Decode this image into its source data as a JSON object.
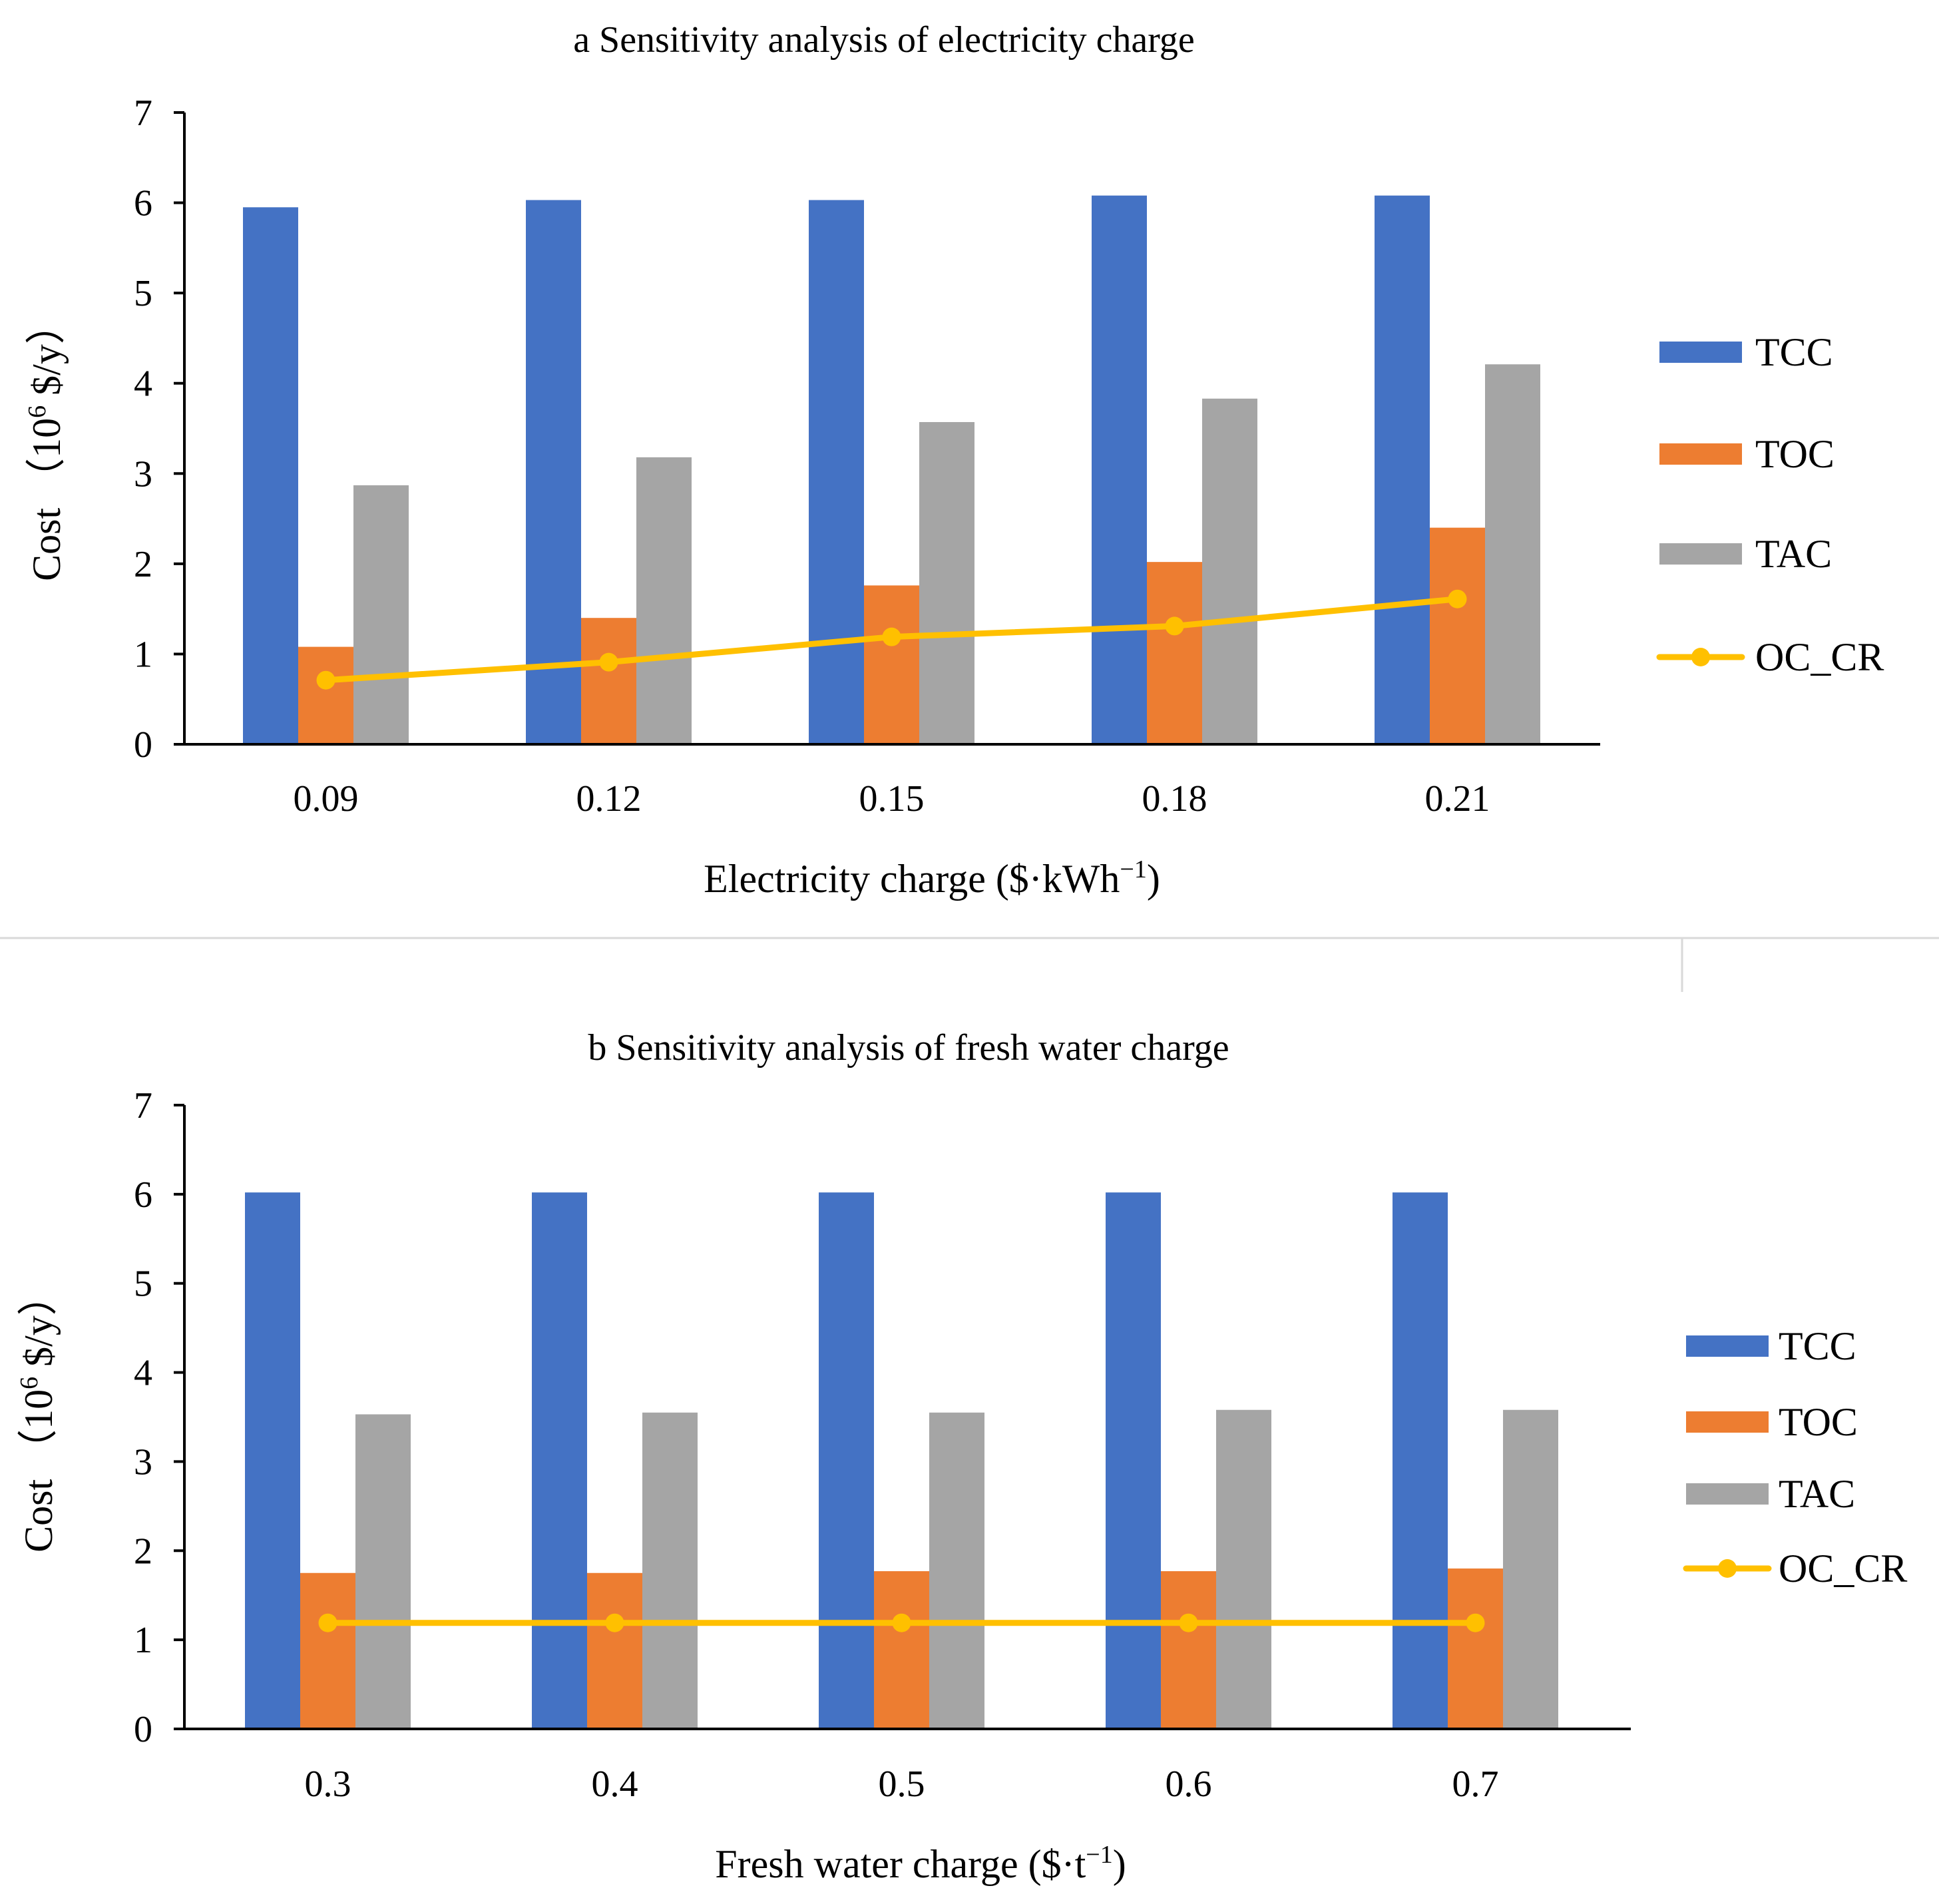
{
  "colors": {
    "TCC": "#4472C4",
    "TOC": "#ED7D31",
    "TAC": "#A5A5A5",
    "OC_CR": "#FFC000",
    "axis": "#000000",
    "divider": "#D9D9D9"
  },
  "chart_data": [
    {
      "type": "bar",
      "title": "a Sensitivity analysis of electricity charge",
      "xlabel": "Electricity charge ($·kWh",
      "xlabel_sup": "−1",
      "xlabel_tail": ")",
      "ylabel_prefix": "Cost （10",
      "ylabel_sup": "6",
      "ylabel_suffix": " $/y）",
      "categories": [
        "0.09",
        "0.12",
        "0.15",
        "0.18",
        "0.21"
      ],
      "ylim": [
        0,
        7
      ],
      "yticks": [
        "0",
        "1",
        "2",
        "3",
        "4",
        "5",
        "6",
        "7"
      ],
      "series": [
        {
          "name": "TCC",
          "kind": "bar",
          "values": [
            5.95,
            6.03,
            6.03,
            6.08,
            6.08
          ]
        },
        {
          "name": "TOC",
          "kind": "bar",
          "values": [
            1.08,
            1.4,
            1.76,
            2.02,
            2.4
          ]
        },
        {
          "name": "TAC",
          "kind": "bar",
          "values": [
            2.87,
            3.18,
            3.57,
            3.83,
            4.21
          ]
        },
        {
          "name": "OC_CR",
          "kind": "line",
          "values": [
            0.71,
            0.91,
            1.19,
            1.31,
            1.61
          ]
        }
      ],
      "legend": [
        "TCC",
        "TOC",
        "TAC",
        "OC_CR"
      ]
    },
    {
      "type": "bar",
      "title": "b Sensitivity analysis of fresh water charge",
      "xlabel": "Fresh water charge ($·t",
      "xlabel_sup": "−1",
      "xlabel_tail": ")",
      "ylabel_prefix": "Cost （10",
      "ylabel_sup": "6",
      "ylabel_suffix": " $/y）",
      "categories": [
        "0.3",
        "0.4",
        "0.5",
        "0.6",
        "0.7"
      ],
      "ylim": [
        0,
        7
      ],
      "yticks": [
        "0",
        "1",
        "2",
        "3",
        "4",
        "5",
        "6",
        "7"
      ],
      "series": [
        {
          "name": "TCC",
          "kind": "bar",
          "values": [
            6.02,
            6.02,
            6.02,
            6.02,
            6.02
          ]
        },
        {
          "name": "TOC",
          "kind": "bar",
          "values": [
            1.75,
            1.75,
            1.77,
            1.77,
            1.8
          ]
        },
        {
          "name": "TAC",
          "kind": "bar",
          "values": [
            3.53,
            3.55,
            3.55,
            3.58,
            3.58
          ]
        },
        {
          "name": "OC_CR",
          "kind": "line",
          "values": [
            1.19,
            1.19,
            1.19,
            1.19,
            1.19
          ]
        }
      ],
      "legend": [
        "TCC",
        "TOC",
        "TAC",
        "OC_CR"
      ]
    }
  ]
}
